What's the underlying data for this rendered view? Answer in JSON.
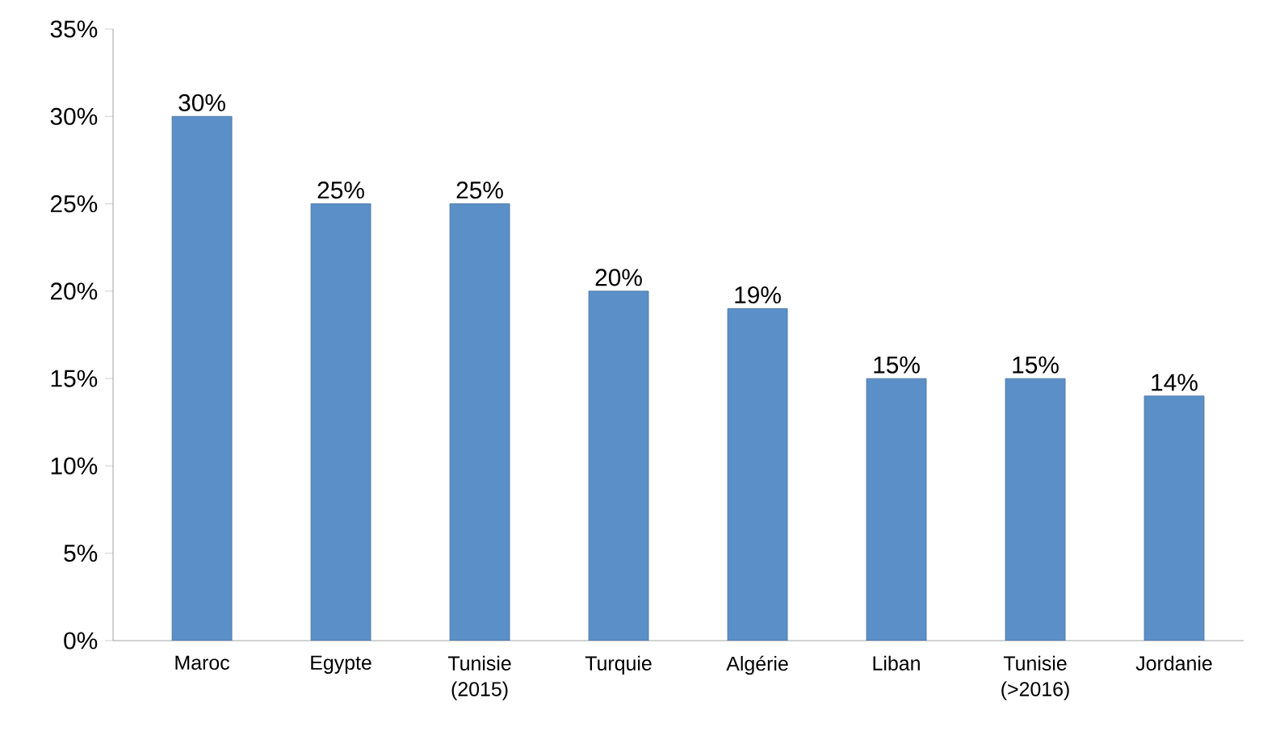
{
  "chart_data": {
    "type": "bar",
    "categories": [
      "Maroc",
      "Egypte",
      "Tunisie (2015)",
      "Turquie",
      "Algérie",
      "Liban",
      "Tunisie (>2016)",
      "Jordanie"
    ],
    "values": [
      30,
      25,
      25,
      20,
      19,
      15,
      15,
      14
    ],
    "value_labels": [
      "30%",
      "25%",
      "25%",
      "20%",
      "19%",
      "15%",
      "15%",
      "14%"
    ],
    "color": "#5b8fc7",
    "ylim": [
      0,
      35
    ],
    "yticks": [
      {
        "value": 0,
        "label": "0%"
      },
      {
        "value": 5,
        "label": "5%"
      },
      {
        "value": 10,
        "label": "10%"
      },
      {
        "value": 15,
        "label": "15%"
      },
      {
        "value": 20,
        "label": "20%"
      },
      {
        "value": 25,
        "label": "25%"
      },
      {
        "value": 30,
        "label": "30%"
      },
      {
        "value": 35,
        "label": "35%"
      }
    ]
  }
}
